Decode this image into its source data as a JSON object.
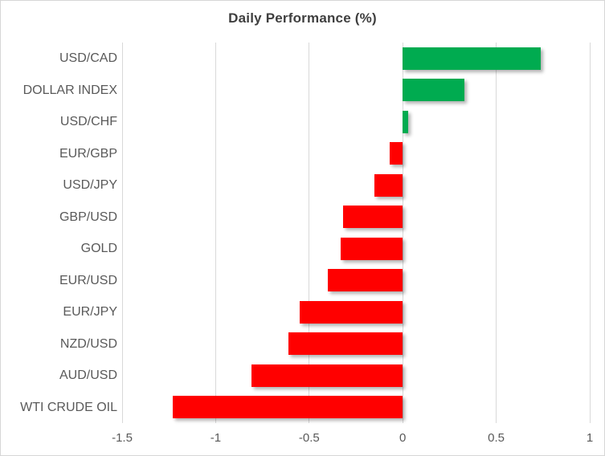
{
  "chart_data": {
    "type": "bar",
    "orientation": "horizontal",
    "title": "Daily Performance (%)",
    "categories": [
      "USD/CAD",
      "DOLLAR INDEX",
      "USD/CHF",
      "EUR/GBP",
      "USD/JPY",
      "GBP/USD",
      "GOLD",
      "EUR/USD",
      "EUR/JPY",
      "NZD/USD",
      "AUD/USD",
      "WTI CRUDE OIL"
    ],
    "values": [
      0.74,
      0.33,
      0.03,
      -0.07,
      -0.15,
      -0.32,
      -0.33,
      -0.4,
      -0.55,
      -0.61,
      -0.81,
      -1.23
    ],
    "xlim": [
      -1.5,
      1
    ],
    "xticks": [
      -1.5,
      -1,
      -0.5,
      0,
      0.5,
      1
    ],
    "xtick_labels": [
      "-1.5",
      "-1",
      "-0.5",
      "0",
      "0.5",
      "1"
    ],
    "xlabel": "",
    "ylabel": "",
    "grid": true,
    "legend": false,
    "positive_color": "#00ab50",
    "negative_color": "#ff0000",
    "gridline_color": "#d9d9d9",
    "label_color": "#595959",
    "title_color": "#3f3f3f"
  }
}
